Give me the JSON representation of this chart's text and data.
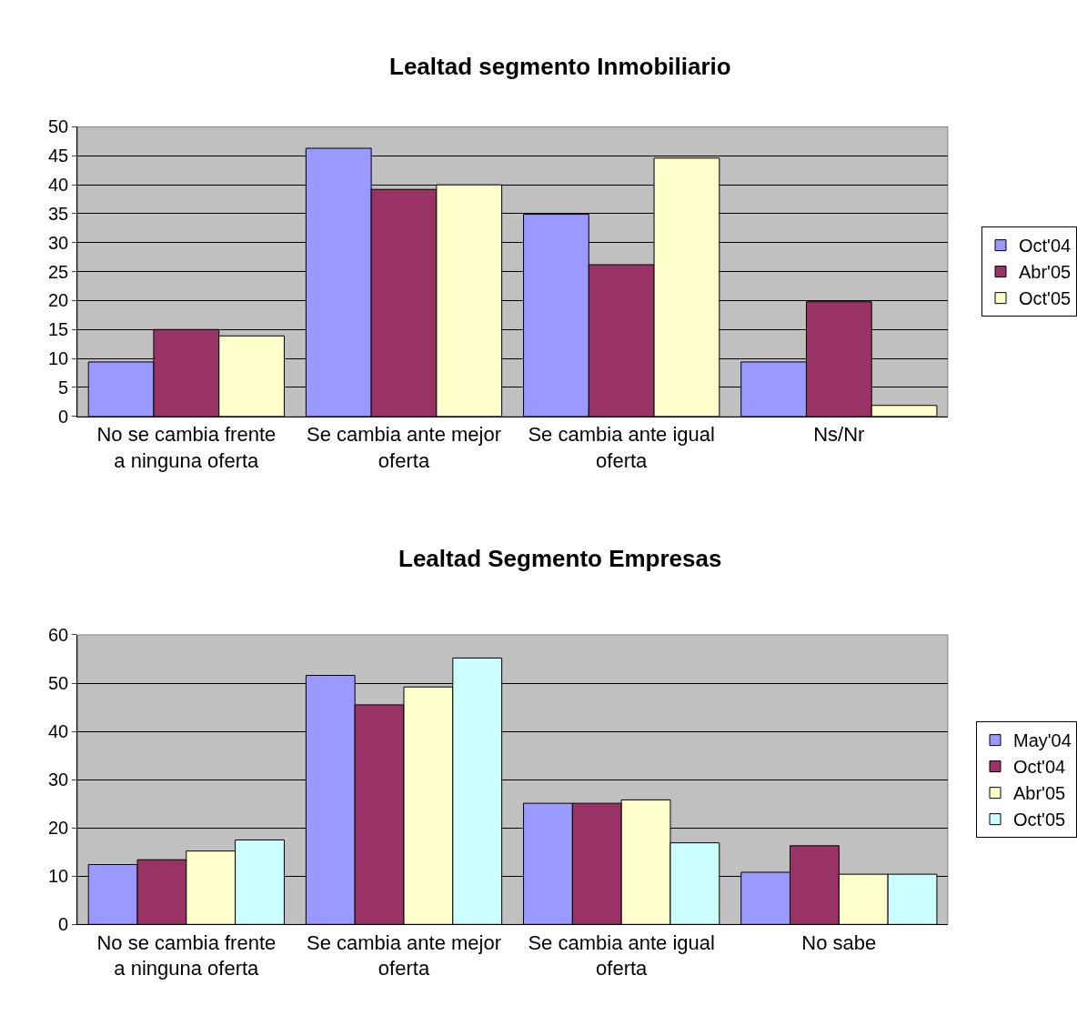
{
  "chart_data": [
    {
      "type": "bar",
      "title": "Lealtad segmento Inmobiliario",
      "categories": [
        "No se cambia frente a ninguna oferta",
        "Se cambia ante mejor oferta",
        "Se cambia ante igual oferta",
        "Ns/Nr"
      ],
      "series": [
        {
          "name": "Oct'04",
          "color": "#9999ff",
          "values": [
            9.4,
            46.3,
            34.9,
            9.4
          ]
        },
        {
          "name": "Abr'05",
          "color": "#993366",
          "values": [
            15.0,
            39.2,
            26.2,
            19.8
          ]
        },
        {
          "name": "Oct'05",
          "color": "#ffffcc",
          "values": [
            13.9,
            40.0,
            44.6,
            1.9
          ]
        }
      ],
      "ylim": [
        0,
        50
      ],
      "yticks": [
        0,
        5,
        10,
        15,
        20,
        25,
        30,
        35,
        40,
        45,
        50
      ],
      "grid": "y",
      "legend": "right"
    },
    {
      "type": "bar",
      "title": "Lealtad Segmento Empresas",
      "categories": [
        "No se cambia frente a ninguna oferta",
        "Se cambia ante mejor oferta",
        "Se cambia ante igual oferta",
        "No sabe"
      ],
      "series": [
        {
          "name": "May'04",
          "color": "#9999ff",
          "values": [
            12.4,
            51.6,
            25.1,
            10.8
          ]
        },
        {
          "name": "Oct'04",
          "color": "#993366",
          "values": [
            13.4,
            45.5,
            25.1,
            16.3
          ]
        },
        {
          "name": "Abr'05",
          "color": "#ffffcc",
          "values": [
            15.2,
            49.2,
            25.8,
            10.4
          ]
        },
        {
          "name": "Oct'05",
          "color": "#ccffff",
          "values": [
            17.5,
            55.2,
            16.9,
            10.4
          ]
        }
      ],
      "ylim": [
        0,
        60
      ],
      "yticks": [
        0,
        10,
        20,
        30,
        40,
        50,
        60
      ],
      "grid": "y",
      "legend": "right"
    }
  ]
}
